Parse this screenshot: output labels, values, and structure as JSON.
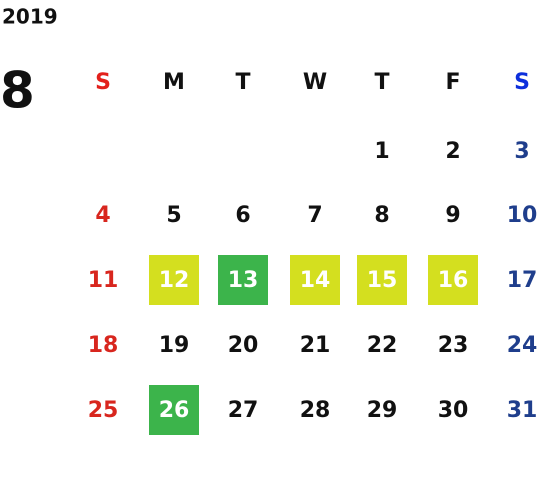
{
  "calendar": {
    "year": 2019,
    "month": 8,
    "weekdays": [
      {
        "label": "S",
        "color": "#e3201b"
      },
      {
        "label": "M",
        "color": "#111111"
      },
      {
        "label": "T",
        "color": "#111111"
      },
      {
        "label": "W",
        "color": "#111111"
      },
      {
        "label": "T",
        "color": "#111111"
      },
      {
        "label": "F",
        "color": "#111111"
      },
      {
        "label": "S",
        "color": "#0d2fdc"
      }
    ],
    "day_colors": [
      "#d8261e",
      "#111111",
      "#111111",
      "#111111",
      "#111111",
      "#111111",
      "#1f3e8c"
    ],
    "weeks": [
      [
        null,
        null,
        null,
        null,
        1,
        2,
        3
      ],
      [
        4,
        5,
        6,
        7,
        8,
        9,
        10
      ],
      [
        11,
        {
          "day": 12,
          "color": "#d4df1f"
        },
        {
          "day": 13,
          "color": "#3cb44b"
        },
        {
          "day": 14,
          "color": "#d4df1f"
        },
        {
          "day": 15,
          "color": "#d4df1f"
        },
        {
          "day": 16,
          "color": "#d4df1f"
        },
        17
      ],
      [
        18,
        19,
        20,
        21,
        22,
        23,
        24
      ],
      [
        25,
        {
          "day": 26,
          "color": "#3cb44b"
        },
        27,
        28,
        29,
        30,
        31
      ]
    ]
  }
}
